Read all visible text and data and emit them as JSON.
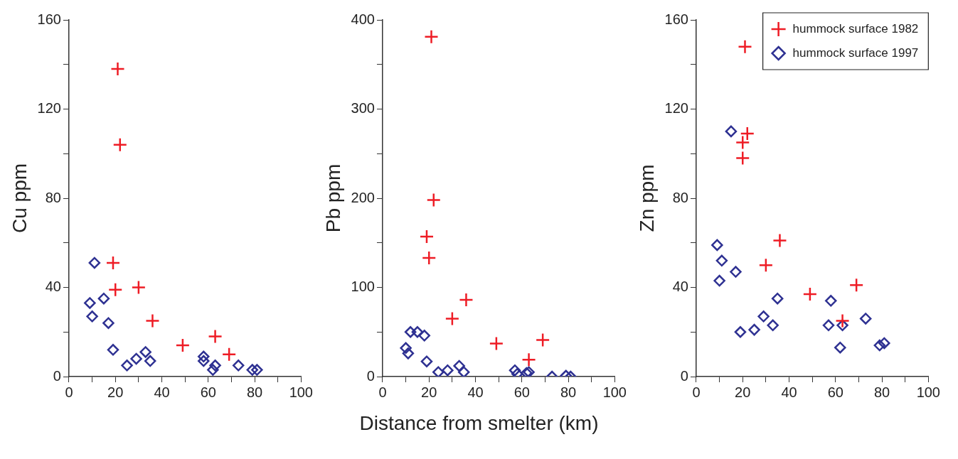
{
  "chart_data": [
    {
      "type": "scatter",
      "ylabel": "Cu ppm",
      "xlim": [
        0,
        100
      ],
      "xticks": [
        0,
        {
          "value": 10,
          "label": null
        },
        20,
        {
          "value": 30,
          "label": null
        },
        40,
        {
          "value": 50,
          "label": null
        },
        60,
        {
          "value": 70,
          "label": null
        },
        80,
        {
          "value": 90,
          "label": null
        },
        100
      ],
      "ylim": [
        0,
        160
      ],
      "yticks": [
        0,
        {
          "value": 20,
          "label": null
        },
        40,
        {
          "value": 60,
          "label": null
        },
        80,
        {
          "value": 100,
          "label": null
        },
        120,
        {
          "value": 140,
          "label": null
        },
        160
      ],
      "grid": false,
      "series": [
        {
          "color": "#ee1c25",
          "marker": "cross",
          "x": [
            21,
            22,
            19,
            20,
            30,
            36,
            49,
            63,
            69
          ],
          "values": [
            138,
            104,
            51,
            39,
            40,
            25,
            14,
            18,
            10
          ]
        },
        {
          "color": "#2e3192",
          "marker": "diamond",
          "x": [
            11,
            9,
            15,
            10,
            17,
            19,
            25,
            29,
            33,
            35,
            58,
            58,
            63,
            62,
            73,
            79,
            81
          ],
          "values": [
            51,
            33,
            35,
            27,
            24,
            12,
            5,
            8,
            11,
            7,
            9,
            7,
            5,
            3,
            5,
            3,
            3
          ]
        }
      ]
    },
    {
      "type": "scatter",
      "ylabel": "Pb ppm",
      "xlabel": "Distance from smelter (km)",
      "xlim": [
        0,
        100
      ],
      "xticks": [
        0,
        {
          "value": 10,
          "label": null
        },
        20,
        {
          "value": 30,
          "label": null
        },
        40,
        {
          "value": 50,
          "label": null
        },
        60,
        {
          "value": 70,
          "label": null
        },
        80,
        {
          "value": 90,
          "label": null
        },
        100
      ],
      "ylim": [
        0,
        400
      ],
      "yticks": [
        0,
        {
          "value": 50,
          "label": null
        },
        100,
        {
          "value": 150,
          "label": null
        },
        200,
        {
          "value": 250,
          "label": null
        },
        300,
        {
          "value": 350,
          "label": null
        },
        400
      ],
      "grid": false,
      "series": [
        {
          "color": "#ee1c25",
          "marker": "cross",
          "x": [
            21,
            22,
            19,
            20,
            30,
            36,
            49,
            63,
            69
          ],
          "values": [
            381,
            198,
            157,
            133,
            65,
            86,
            37,
            19,
            41
          ]
        },
        {
          "color": "#2e3192",
          "marker": "diamond",
          "x": [
            10,
            11,
            12,
            15,
            18,
            19,
            24,
            28,
            33,
            35,
            57,
            58,
            62,
            63,
            73,
            79,
            81
          ],
          "values": [
            32,
            26,
            50,
            50,
            46,
            17,
            5,
            7,
            12,
            5,
            7,
            3,
            4,
            5,
            0,
            1,
            0
          ]
        }
      ]
    },
    {
      "type": "scatter",
      "ylabel": "Zn ppm",
      "xlim": [
        0,
        100
      ],
      "xticks": [
        0,
        {
          "value": 10,
          "label": null
        },
        20,
        {
          "value": 30,
          "label": null
        },
        40,
        {
          "value": 50,
          "label": null
        },
        60,
        {
          "value": 70,
          "label": null
        },
        80,
        {
          "value": 90,
          "label": null
        },
        100
      ],
      "ylim": [
        0,
        160
      ],
      "yticks": [
        0,
        {
          "value": 20,
          "label": null
        },
        40,
        {
          "value": 60,
          "label": null
        },
        80,
        {
          "value": 100,
          "label": null
        },
        120,
        {
          "value": 140,
          "label": null
        },
        160
      ],
      "grid": false,
      "legend": "top right",
      "series": [
        {
          "name": "hummock surface 1982",
          "color": "#ee1c25",
          "marker": "cross",
          "x": [
            21,
            22,
            20,
            20,
            30,
            36,
            49,
            63,
            69
          ],
          "values": [
            148,
            109,
            105,
            98,
            50,
            61,
            37,
            25,
            41
          ]
        },
        {
          "name": "hummock surface 1997",
          "color": "#2e3192",
          "marker": "diamond",
          "x": [
            15,
            9,
            11,
            17,
            10,
            19,
            25,
            29,
            33,
            35,
            58,
            57,
            62,
            63,
            73,
            79,
            81
          ],
          "values": [
            110,
            59,
            52,
            47,
            43,
            20,
            21,
            27,
            23,
            35,
            34,
            23,
            13,
            23,
            26,
            14,
            15
          ]
        }
      ]
    }
  ]
}
